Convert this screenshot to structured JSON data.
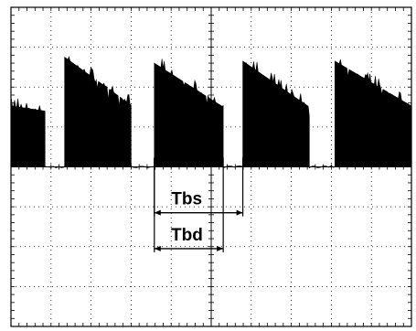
{
  "chart_data": {
    "type": "area",
    "title": "",
    "xlabel": "",
    "ylabel": "",
    "xlim": [
      0,
      10
    ],
    "ylim": [
      0,
      8
    ],
    "grid": true,
    "grid_style": "dotted",
    "x_divisions": 10,
    "y_divisions": 8,
    "baseline_y": 4,
    "colors": {
      "trace": "#000000",
      "background": "#ffffff",
      "grid": "#000000"
    },
    "series": [
      {
        "bursts": [
          {
            "start": -0.48,
            "end": 0.85,
            "peak": 1.6,
            "tail": 1.4
          },
          {
            "start": 1.34,
            "end": 3.0,
            "peak": 2.75,
            "tail": 1.55
          },
          {
            "start": 3.58,
            "end": 5.3,
            "peak": 2.6,
            "tail": 1.5
          },
          {
            "start": 5.79,
            "end": 7.45,
            "peak": 2.65,
            "tail": 1.5
          },
          {
            "start": 8.09,
            "end": 10.3,
            "peak": 2.65,
            "tail": 1.35
          }
        ]
      }
    ],
    "annotations": [
      {
        "text": "Tbd",
        "x_start": 3.58,
        "x_end": 5.3,
        "arrow_y": 2.05
      },
      {
        "text": "Tbs",
        "x_start": 3.58,
        "x_end": 5.79,
        "arrow_y": 1.15
      }
    ]
  }
}
